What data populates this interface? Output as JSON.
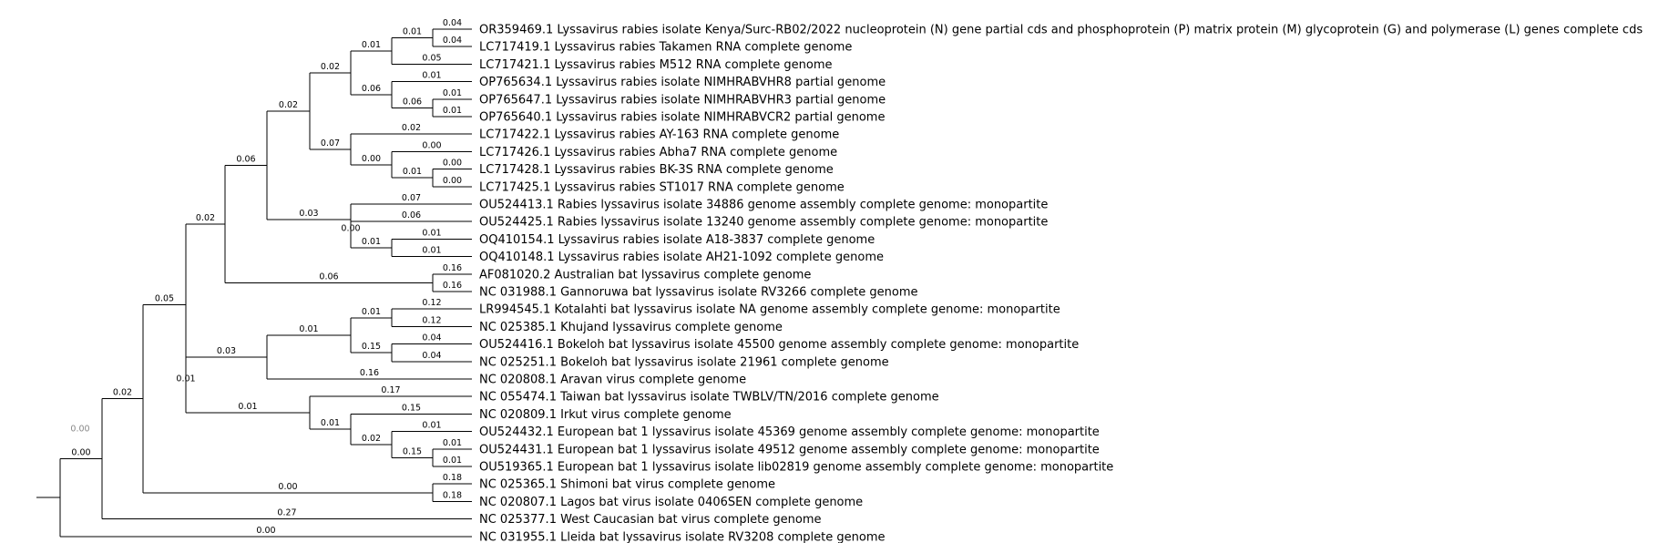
{
  "tree": {
    "taxa": [
      "OR359469.1 Lyssavirus rabies isolate Kenya/Surc-RB02/2022 nucleoprotein (N) gene partial cds and phosphoprotein (P) matrix protein (M) glycoprotein (G) and polymerase (L) genes complete cds",
      "LC717419.1 Lyssavirus rabies Takamen RNA complete genome",
      "LC717421.1 Lyssavirus rabies M512 RNA complete genome",
      "OP765634.1 Lyssavirus rabies isolate NIMHRABVHR8 partial genome",
      "OP765647.1 Lyssavirus rabies isolate NIMHRABVHR3 partial genome",
      "OP765640.1 Lyssavirus rabies isolate NIMHRABVCR2 partial genome",
      "LC717422.1 Lyssavirus rabies AY-163 RNA complete genome",
      "LC717426.1 Lyssavirus rabies Abha7 RNA complete genome",
      "LC717428.1 Lyssavirus rabies BK-3S RNA complete genome",
      "LC717425.1 Lyssavirus rabies ST1017 RNA complete genome",
      "OU524413.1 Rabies lyssavirus isolate 34886 genome assembly complete genome: monopartite",
      "OU524425.1 Rabies lyssavirus isolate 13240 genome assembly complete genome: monopartite",
      "OQ410154.1 Lyssavirus rabies isolate A18-3837 complete genome",
      "OQ410148.1 Lyssavirus rabies isolate AH21-1092 complete genome",
      "AF081020.2 Australian bat lyssavirus complete genome",
      "NC 031988.1 Gannoruwa bat lyssavirus isolate RV3266 complete genome",
      "LR994545.1 Kotalahti bat lyssavirus isolate NA genome assembly complete genome: monopartite",
      "NC 025385.1 Khujand lyssavirus complete genome",
      "OU524416.1 Bokeloh bat lyssavirus isolate 45500 genome assembly complete genome: monopartite",
      "NC 025251.1 Bokeloh bat lyssavirus isolate 21961 complete genome",
      "NC 020808.1 Aravan virus complete genome",
      "NC 055474.1 Taiwan bat lyssavirus isolate TWBLV/TN/2016 complete genome",
      "NC 020809.1 Irkut virus complete genome",
      "OU524432.1 European bat 1 lyssavirus isolate 45369 genome assembly complete genome: monopartite",
      "OU524431.1 European bat 1 lyssavirus isolate 49512 genome assembly complete genome: monopartite",
      "OU519365.1 European bat 1 lyssavirus isolate lib02819 genome assembly complete genome: monopartite",
      "NC 025365.1 Shimoni bat virus complete genome",
      "NC 020807.1 Lagos bat virus isolate 0406SEN complete genome",
      "NC 025377.1 West Caucasian bat virus complete genome",
      "NC 031955.1 Lleida bat lyssavirus isolate RV3208 complete genome"
    ],
    "root_branch_length": "0.00",
    "nodes": [
      {
        "id": "n01",
        "children": [
          0,
          1
        ],
        "child_lengths": [
          "0.04",
          "0.04"
        ]
      },
      {
        "id": "n02",
        "children": [
          "n01",
          2
        ],
        "child_lengths": [
          "0.01",
          "0.05"
        ]
      },
      {
        "id": "n03",
        "children": [
          4,
          5
        ],
        "child_lengths": [
          "0.01",
          "0.01"
        ]
      },
      {
        "id": "n04",
        "children": [
          3,
          "n03"
        ],
        "child_lengths": [
          "0.01",
          "0.06"
        ]
      },
      {
        "id": "n05",
        "children": [
          "n02",
          "n04"
        ],
        "child_lengths": [
          "0.01",
          "0.06"
        ]
      },
      {
        "id": "n06",
        "children": [
          8,
          9
        ],
        "child_lengths": [
          "0.00",
          "0.00"
        ]
      },
      {
        "id": "n07",
        "children": [
          7,
          "n06"
        ],
        "child_lengths": [
          "0.00",
          "0.01"
        ]
      },
      {
        "id": "n08",
        "children": [
          6,
          "n07"
        ],
        "child_lengths": [
          "0.02",
          "0.00"
        ]
      },
      {
        "id": "n09",
        "children": [
          "n05",
          "n08"
        ],
        "child_lengths": [
          "0.02",
          "0.07"
        ]
      },
      {
        "id": "n10",
        "children": [
          12,
          13
        ],
        "child_lengths": [
          "0.01",
          "0.01"
        ]
      },
      {
        "id": "n11",
        "children": [
          11,
          "n10"
        ],
        "child_lengths": [
          "0.06",
          "0.01"
        ]
      },
      {
        "id": "n12",
        "children": [
          10,
          "n11"
        ],
        "child_lengths": [
          "0.07",
          "0.00"
        ]
      },
      {
        "id": "n13",
        "children": [
          "n09",
          "n12"
        ],
        "child_lengths": [
          "0.02",
          "0.03"
        ]
      },
      {
        "id": "n14",
        "children": [
          14,
          15
        ],
        "child_lengths": [
          "0.16",
          "0.16"
        ]
      },
      {
        "id": "n15",
        "children": [
          "n13",
          "n14"
        ],
        "child_lengths": [
          "0.06",
          "0.06"
        ]
      },
      {
        "id": "n16",
        "children": [
          16,
          17
        ],
        "child_lengths": [
          "0.12",
          "0.12"
        ]
      },
      {
        "id": "n17",
        "children": [
          18,
          19
        ],
        "child_lengths": [
          "0.04",
          "0.04"
        ]
      },
      {
        "id": "n18",
        "children": [
          "n16",
          "n17"
        ],
        "child_lengths": [
          "0.01",
          "0.15"
        ]
      },
      {
        "id": "n19",
        "children": [
          "n18",
          20
        ],
        "child_lengths": [
          "0.01",
          "0.16"
        ]
      },
      {
        "id": "n20",
        "children": [
          24,
          25
        ],
        "child_lengths": [
          "0.01",
          "0.01"
        ]
      },
      {
        "id": "n21",
        "children": [
          23,
          "n20"
        ],
        "child_lengths": [
          "0.01",
          "0.15"
        ]
      },
      {
        "id": "n22",
        "children": [
          22,
          "n21"
        ],
        "child_lengths": [
          "0.15",
          "0.02"
        ]
      },
      {
        "id": "n23",
        "children": [
          21,
          "n22"
        ],
        "child_lengths": [
          "0.17",
          "0.01"
        ]
      },
      {
        "id": "n24",
        "children": [
          "n19",
          "n23"
        ],
        "child_lengths": [
          "0.03",
          "0.01"
        ]
      },
      {
        "id": "n25",
        "children": [
          "n15",
          "n24"
        ],
        "child_lengths": [
          "0.02",
          "0.01"
        ]
      },
      {
        "id": "n26",
        "children": [
          26,
          27
        ],
        "child_lengths": [
          "0.18",
          "0.18"
        ]
      },
      {
        "id": "n27",
        "children": [
          "n25",
          "n26"
        ],
        "child_lengths": [
          "0.05",
          "0.00"
        ]
      },
      {
        "id": "n28",
        "children": [
          "n27",
          28
        ],
        "child_lengths": [
          "0.02",
          "0.27"
        ]
      },
      {
        "id": "n29",
        "children": [
          "n28",
          29
        ],
        "child_lengths": [
          "0.00",
          "0.00"
        ]
      }
    ]
  }
}
